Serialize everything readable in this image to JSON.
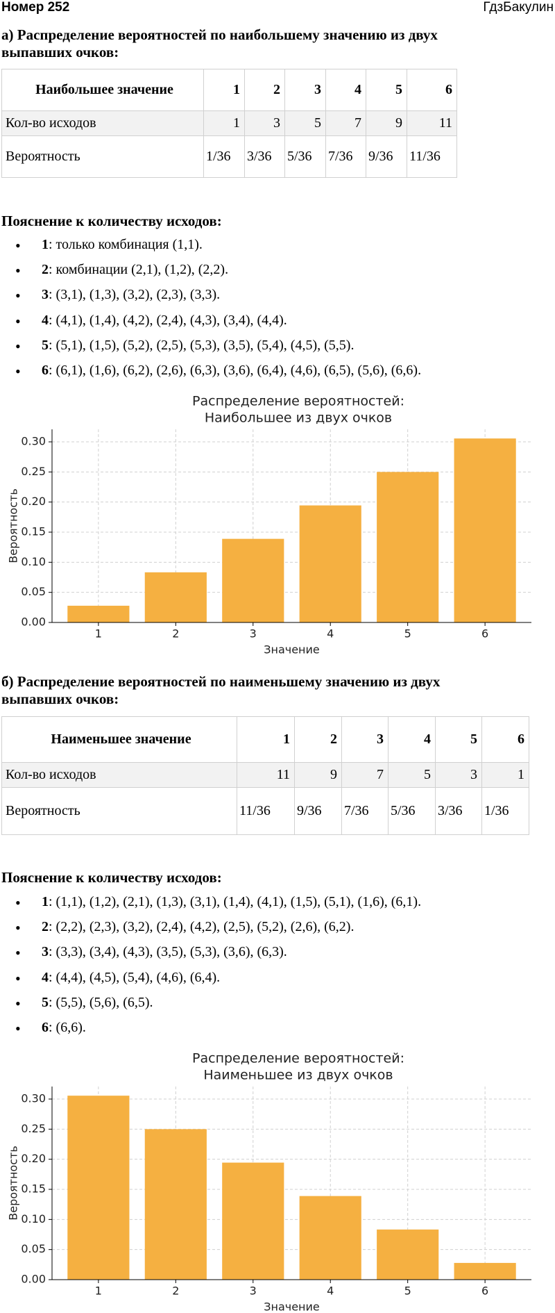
{
  "header": {
    "title": "Номер 252",
    "site": "ГдзБакулин"
  },
  "sections": [
    {
      "heading": [
        "а) Распределение вероятностей по наибольшему значению из двух",
        "выпавших очков:"
      ],
      "table": {
        "rows": [
          [
            "Наибольшее значение",
            1,
            2,
            3,
            4,
            5,
            6
          ],
          [
            "Кол-во исходов",
            1,
            3,
            5,
            7,
            9,
            11
          ],
          [
            "Вероятность",
            "1/36",
            "3/36",
            "5/36",
            "7/36",
            "9/36",
            "11/36"
          ]
        ]
      },
      "explanation": {
        "title": "Пояснение к количеству исходов:",
        "items": [
          {
            "key": "1",
            "text": ": только комбинация (1,1)."
          },
          {
            "key": "2",
            "text": ": комбинации (2,1), (1,2), (2,2)."
          },
          {
            "key": "3",
            "text": ": (3,1), (1,3), (3,2), (2,3), (3,3)."
          },
          {
            "key": "4",
            "text": ": (4,1), (1,4), (4,2), (2,4), (4,3), (3,4), (4,4)."
          },
          {
            "key": "5",
            "text": ": (5,1), (1,5), (5,2), (2,5), (5,3), (3,5), (5,4), (4,5), (5,5)."
          },
          {
            "key": "6",
            "text": ": (6,1), (1,6), (6,2), (2,6), (6,3), (3,6), (6,4), (4,6), (6,5), (5,6), (6,6)."
          }
        ]
      }
    },
    {
      "heading": [
        "б) Распределение вероятностей по наименьшему значению из двух",
        "выпавших очков:"
      ],
      "table": {
        "rows": [
          [
            "Наименьшее значение",
            1,
            2,
            3,
            4,
            5,
            6
          ],
          [
            "Кол-во исходов",
            11,
            9,
            7,
            5,
            3,
            1
          ],
          [
            "Вероятность",
            "11/36",
            "9/36",
            "7/36",
            "5/36",
            "3/36",
            "1/36"
          ]
        ]
      },
      "explanation": {
        "title": "Пояснение к количеству исходов:",
        "items": [
          {
            "key": "1",
            "text": ": (1,1), (1,2), (2,1), (1,3), (3,1), (1,4), (4,1), (1,5), (5,1), (1,6), (6,1)."
          },
          {
            "key": "2",
            "text": ": (2,2), (2,3), (3,2), (2,4), (4,2), (2,5), (5,2), (2,6), (6,2)."
          },
          {
            "key": "3",
            "text": ": (3,3), (3,4), (4,3), (3,5), (5,3), (3,6), (6,3)."
          },
          {
            "key": "4",
            "text": ": (4,4), (4,5), (5,4), (4,6), (6,4)."
          },
          {
            "key": "5",
            "text": ": (5,5), (5,6), (6,5)."
          },
          {
            "key": "6",
            "text": ": (6,6)."
          }
        ]
      }
    }
  ],
  "chart_data": [
    {
      "type": "bar",
      "title": [
        "Распределение вероятностей:",
        "Наибольшее из двух очков"
      ],
      "x_label": "Значение",
      "y_label": "Вероятность",
      "categories": [
        "1",
        "2",
        "3",
        "4",
        "5",
        "6"
      ],
      "values": [
        0.0278,
        0.0833,
        0.1389,
        0.1944,
        0.25,
        0.3056
      ],
      "color": "#f5b041",
      "ylim": [
        0,
        0.3208
      ],
      "yticks": [
        {
          "value": 0,
          "label": "0.00"
        },
        0.05,
        {
          "value": 0.1,
          "label": "0.10"
        },
        0.15,
        {
          "value": 0.2,
          "label": "0.20"
        },
        0.25,
        {
          "value": 0.3,
          "label": "0.30"
        }
      ],
      "grid": true
    },
    {
      "type": "bar",
      "title": [
        "Распределение вероятностей:",
        "Наименьшее из двух очков"
      ],
      "x_label": "Значение",
      "y_label": "Вероятность",
      "categories": [
        "1",
        "2",
        "3",
        "4",
        "5",
        "6"
      ],
      "values": [
        0.3056,
        0.25,
        0.1944,
        0.1389,
        0.0833,
        0.0278
      ],
      "color": "#f5b041",
      "ylim": [
        0,
        0.3208
      ],
      "yticks": [
        {
          "value": 0,
          "label": "0.00"
        },
        0.05,
        {
          "value": 0.1,
          "label": "0.10"
        },
        0.15,
        {
          "value": 0.2,
          "label": "0.20"
        },
        0.25,
        {
          "value": 0.3,
          "label": "0.30"
        }
      ],
      "grid": true
    }
  ]
}
